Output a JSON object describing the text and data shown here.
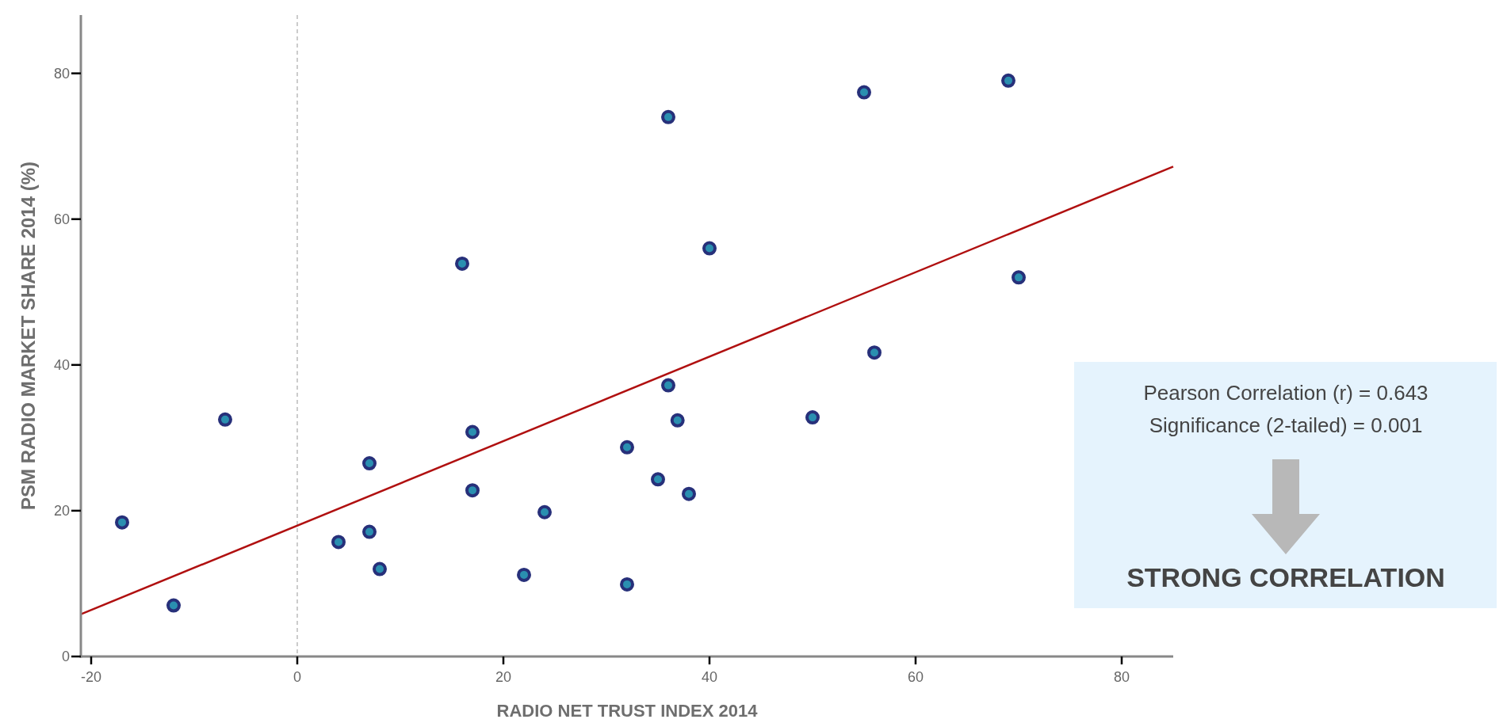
{
  "chart_data": {
    "type": "scatter",
    "xlabel": "RADIO NET TRUST INDEX 2014",
    "ylabel": "PSM RADIO MARKET SHARE 2014 (%)",
    "xlim": [
      -21,
      85
    ],
    "ylim": [
      0,
      88
    ],
    "xticks": [
      -20,
      0,
      20,
      40,
      60,
      80
    ],
    "yticks": [
      0,
      20,
      40,
      60,
      80
    ],
    "grid": false,
    "marker": "circle",
    "series": [
      {
        "color": "#2a8fb0",
        "x": [
          -17,
          -12,
          -7,
          16,
          36,
          36,
          36.9,
          17,
          7,
          32,
          35,
          17,
          24,
          7,
          4,
          8,
          22,
          32,
          55,
          69,
          40,
          70,
          56,
          50,
          38
        ],
        "values": [
          18.4,
          7,
          32.5,
          53.9,
          74,
          37.2,
          32.4,
          30.8,
          26.5,
          28.7,
          24.3,
          22.8,
          19.8,
          17.1,
          15.7,
          12,
          11.2,
          9.9,
          77.4,
          79,
          56,
          52,
          41.7,
          32.8,
          22.3
        ]
      },
      {
        "type": "line",
        "color": "#b01010",
        "line_style": "solid",
        "marker": "none",
        "x": [
          -21,
          85
        ],
        "values": [
          5.8,
          67.2
        ]
      }
    ],
    "ref_lines": [
      {
        "axis": "x",
        "value": 0,
        "color": "#aaaaaa",
        "line_style": "dashed"
      }
    ],
    "annotations": [
      "Pearson Correlation (r) = 0.643",
      "Significance (2-tailed) = 0.001",
      "STRONG CORRELATION"
    ]
  }
}
